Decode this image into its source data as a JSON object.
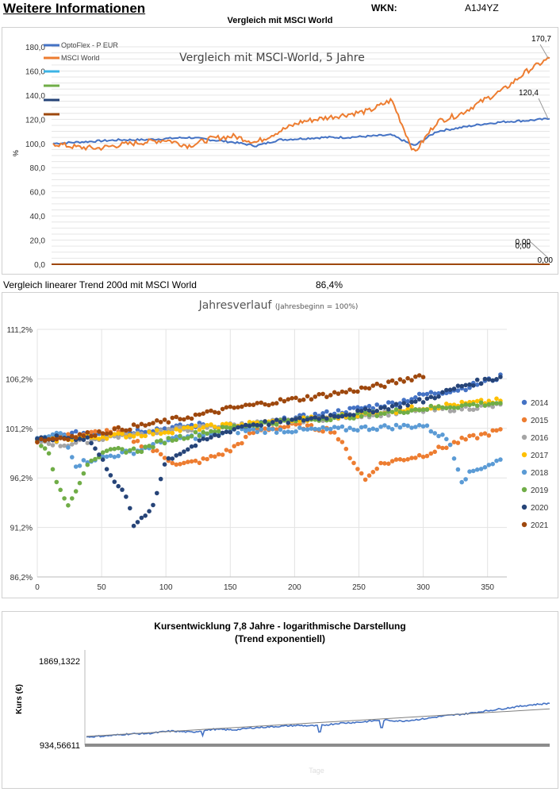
{
  "header": {
    "title": "Weitere Informationen",
    "wkn_label": "WKN:",
    "wkn_value": "A1J4YZ",
    "subtitle": "Vergleich mit MSCI World"
  },
  "middle": {
    "label": "Vergleich linearer Trend 200d mit MSCI World",
    "value": "86,4%"
  },
  "colors": {
    "optoflex": "#4472c4",
    "msci": "#ed7d31",
    "c2014": "#4472c4",
    "c2015": "#ed7d31",
    "c2016": "#a5a5a5",
    "c2017": "#ffc000",
    "c2018": "#5b9bd5",
    "c2019": "#70ad47",
    "c2020": "#264478",
    "c2021": "#9e480e"
  },
  "chart_data": [
    {
      "type": "line",
      "title": "Vergleich mit MSCI-World, 5 Jahre",
      "ylabel": "%",
      "ylim": [
        0,
        180
      ],
      "y_ticks": [
        "180,0",
        "160,0",
        "140,0",
        "120,0",
        "100,0",
        "80,0",
        "60,0",
        "40,0",
        "20,0",
        "0,0"
      ],
      "legend_position": "top-left",
      "series": [
        {
          "name": "OptoFlex - P EUR",
          "color": "#4472c4",
          "values": [
            100,
            101,
            102,
            103,
            103,
            104,
            105,
            103,
            101,
            98,
            103,
            104,
            105,
            105,
            106,
            107,
            98,
            110,
            113,
            116,
            118,
            119,
            120.4
          ]
        },
        {
          "name": "MSCI World",
          "color": "#ed7d31",
          "values": [
            100,
            97,
            96,
            99,
            101,
            103,
            98,
            104,
            106,
            101,
            110,
            118,
            121,
            124,
            127,
            136,
            92,
            118,
            124,
            135,
            145,
            160,
            170.7
          ]
        }
      ],
      "extra_legend_colors": [
        "#3cb4e5",
        "#70ad47",
        "#264478",
        "#9e480e"
      ],
      "end_labels": [
        "170,7",
        "120,4",
        "0,00",
        "0,00",
        "0,00"
      ]
    },
    {
      "type": "scatter",
      "title": "Jahresverlauf",
      "subtitle": "(Jahresbeginn = 100%)",
      "xlim": [
        0,
        365
      ],
      "x_ticks": [
        "0",
        "50",
        "100",
        "150",
        "200",
        "250",
        "300",
        "350"
      ],
      "ylim": [
        86.2,
        111.2
      ],
      "y_ticks": [
        "111,2%",
        "106,2%",
        "101,2%",
        "96,2%",
        "91,2%",
        "86,2%"
      ],
      "legend_position": "right",
      "series": [
        {
          "name": "2014",
          "color": "#4472c4",
          "x": [
            0,
            20,
            40,
            60,
            80,
            100,
            130,
            160,
            190,
            220,
            250,
            280,
            300,
            330,
            350,
            360
          ],
          "y": [
            100,
            100.5,
            100.8,
            100.6,
            101,
            101.2,
            101.6,
            101.3,
            102,
            102.6,
            103.2,
            103.8,
            104.6,
            105.2,
            106,
            106.4
          ]
        },
        {
          "name": "2015",
          "color": "#ed7d31",
          "x": [
            0,
            30,
            60,
            90,
            110,
            130,
            150,
            170,
            200,
            230,
            250,
            255,
            265,
            280,
            300,
            330,
            360
          ],
          "y": [
            100,
            100.5,
            101,
            99,
            97.5,
            98,
            99,
            101,
            101.5,
            101,
            97,
            96,
            97.5,
            98,
            98.5,
            100,
            101
          ]
        },
        {
          "name": "2016",
          "color": "#a5a5a5",
          "x": [
            0,
            20,
            40,
            60,
            80,
            100,
            130,
            160,
            200,
            250,
            300,
            360
          ],
          "y": [
            100,
            99.5,
            100,
            100.4,
            100.6,
            101,
            101.3,
            101.6,
            102,
            102.5,
            103,
            103.5
          ]
        },
        {
          "name": "2017",
          "color": "#ffc000",
          "x": [
            0,
            40,
            80,
            120,
            160,
            200,
            250,
            300,
            360
          ],
          "y": [
            100,
            100.3,
            100.6,
            101.2,
            101.6,
            102,
            102.6,
            103.3,
            104
          ]
        },
        {
          "name": "2018",
          "color": "#5b9bd5",
          "x": [
            0,
            20,
            30,
            40,
            60,
            80,
            100,
            130,
            160,
            200,
            250,
            300,
            320,
            330,
            340,
            360
          ],
          "y": [
            100,
            100.8,
            97.5,
            98,
            98.5,
            99,
            100,
            100.5,
            101,
            101,
            101.2,
            101.5,
            100,
            96,
            97,
            98
          ]
        },
        {
          "name": "2019",
          "color": "#70ad47",
          "x": [
            0,
            8,
            15,
            20,
            25,
            40,
            60,
            80,
            100,
            130,
            160,
            200,
            250,
            300,
            360
          ],
          "y": [
            100,
            99,
            96,
            94,
            93.5,
            98,
            99,
            99,
            100,
            100.8,
            101.5,
            102,
            102.5,
            103.2,
            103.8
          ]
        },
        {
          "name": "2020",
          "color": "#264478",
          "x": [
            0,
            20,
            40,
            60,
            70,
            76,
            80,
            85,
            90,
            100,
            130,
            160,
            200,
            250,
            300,
            330,
            360
          ],
          "y": [
            100,
            100.3,
            100.2,
            96,
            94,
            91,
            92,
            92.5,
            93.5,
            98,
            100,
            101.5,
            102,
            102.8,
            104,
            105.5,
            106.4
          ]
        },
        {
          "name": "2021",
          "color": "#9e480e",
          "x": [
            0,
            30,
            60,
            90,
            120,
            150,
            180,
            210,
            240,
            270,
            300
          ],
          "y": [
            100,
            100.4,
            101,
            101.7,
            102.4,
            103.2,
            103.8,
            104.3,
            104.9,
            105.6,
            106.6
          ]
        }
      ]
    },
    {
      "type": "line",
      "title": "Kursentwicklung 7,8 Jahre - logarithmische Darstellung",
      "subtitle": "(Trend exponentiell)",
      "ylabel": "Kurs (€)",
      "xlabel": "Tage",
      "y_scale": "log",
      "ylim": [
        934.56611,
        1869.1322
      ],
      "y_ticks": [
        "1869,1322",
        "934,56611"
      ],
      "series": [
        {
          "name": "Kurs",
          "color": "#4472c4",
          "values": [
            1000,
            1010,
            1025,
            1030,
            1050,
            1040,
            1065,
            1060,
            1080,
            1090,
            1100,
            1095,
            1120,
            1130,
            1150,
            1140,
            1160,
            1190,
            1210,
            1240,
            1270,
            1300,
            1320
          ]
        },
        {
          "name": "Trend",
          "color": "#7f7f7f",
          "values": [
            1005,
            1260
          ]
        }
      ]
    }
  ]
}
